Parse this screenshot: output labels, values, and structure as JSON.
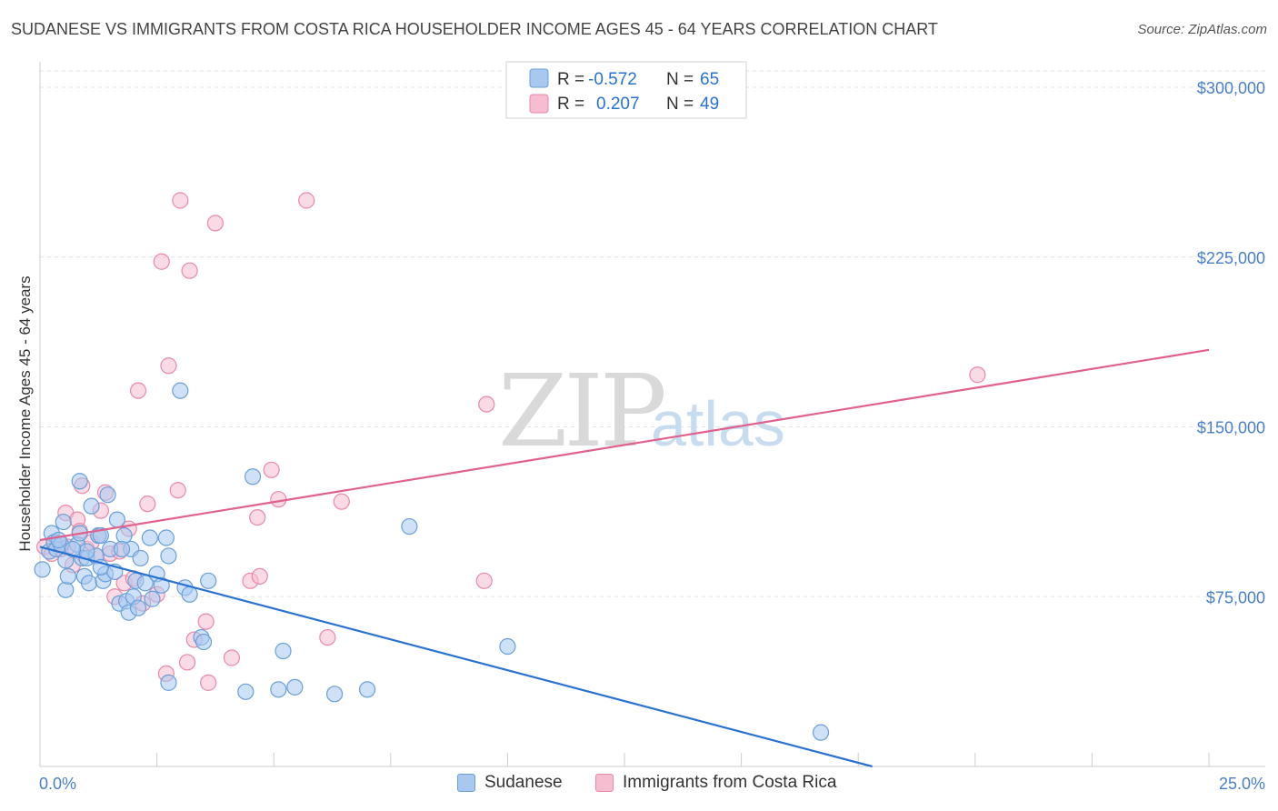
{
  "title": "SUDANESE VS IMMIGRANTS FROM COSTA RICA HOUSEHOLDER INCOME AGES 45 - 64 YEARS CORRELATION CHART",
  "source": "Source: ZipAtlas.com",
  "watermark": {
    "zip": "ZIP",
    "atlas": "atlas"
  },
  "colors": {
    "blue_fill": "#a8c8f0",
    "blue_stroke": "#6a9fd8",
    "blue_line": "#2a72d0",
    "pink_fill": "#f6bcd0",
    "pink_stroke": "#e889aa",
    "pink_line": "#e0608e",
    "axis_label": "#4a7fc8",
    "grid": "#e2e2e2"
  },
  "legend": {
    "rows": [
      {
        "r_label": "R =",
        "r_value": "-0.572",
        "n_label": "N =",
        "n_value": "65"
      },
      {
        "r_label": "R =",
        "r_value": "0.207",
        "n_label": "N =",
        "n_value": "49"
      }
    ]
  },
  "chart_data": {
    "type": "scatter",
    "xlabel": "",
    "ylabel": "Householder Income Ages 45 - 64 years",
    "xlim": [
      0,
      25
    ],
    "ylim": [
      0,
      300000
    ],
    "x_tick_labels": [
      "0.0%",
      "25.0%"
    ],
    "y_ticks": [
      75000,
      150000,
      225000,
      300000
    ],
    "y_tick_labels": [
      "$75,000",
      "$150,000",
      "$225,000",
      "$300,000"
    ],
    "grid": true,
    "series": [
      {
        "name": "Sudanese",
        "color": "#a8c8f0",
        "r": -0.572,
        "n": 65,
        "trend": {
          "x": [
            0,
            17.8
          ],
          "y": [
            97000,
            0
          ]
        },
        "points": [
          [
            0.05,
            87000
          ],
          [
            0.2,
            95000
          ],
          [
            0.25,
            103000
          ],
          [
            0.3,
            99000
          ],
          [
            0.35,
            96000
          ],
          [
            0.45,
            98000
          ],
          [
            0.5,
            108000
          ],
          [
            0.55,
            91000
          ],
          [
            0.55,
            78000
          ],
          [
            0.6,
            84000
          ],
          [
            0.8,
            98000
          ],
          [
            0.85,
            103000
          ],
          [
            0.85,
            126000
          ],
          [
            0.9,
            92000
          ],
          [
            0.95,
            84000
          ],
          [
            1.0,
            92000
          ],
          [
            1.05,
            81000
          ],
          [
            1.1,
            115000
          ],
          [
            1.2,
            93000
          ],
          [
            1.25,
            102000
          ],
          [
            1.3,
            102000
          ],
          [
            1.35,
            82000
          ],
          [
            1.4,
            85000
          ],
          [
            1.45,
            120000
          ],
          [
            1.5,
            96000
          ],
          [
            1.6,
            86000
          ],
          [
            1.65,
            109000
          ],
          [
            1.7,
            72000
          ],
          [
            1.8,
            102000
          ],
          [
            1.85,
            73000
          ],
          [
            1.9,
            68000
          ],
          [
            1.95,
            96000
          ],
          [
            2.0,
            75000
          ],
          [
            2.05,
            82000
          ],
          [
            2.1,
            70000
          ],
          [
            2.15,
            92000
          ],
          [
            2.25,
            81000
          ],
          [
            2.35,
            101000
          ],
          [
            2.5,
            85000
          ],
          [
            2.6,
            80000
          ],
          [
            2.7,
            101000
          ],
          [
            2.75,
            93000
          ],
          [
            2.75,
            37000
          ],
          [
            3.0,
            166000
          ],
          [
            3.1,
            79000
          ],
          [
            3.2,
            76000
          ],
          [
            3.45,
            57000
          ],
          [
            3.6,
            82000
          ],
          [
            4.4,
            33000
          ],
          [
            4.55,
            128000
          ],
          [
            5.2,
            51000
          ],
          [
            5.1,
            34000
          ],
          [
            5.45,
            35000
          ],
          [
            6.3,
            32000
          ],
          [
            7.0,
            34000
          ],
          [
            7.9,
            106000
          ],
          [
            10.0,
            53000
          ],
          [
            16.7,
            15000
          ],
          [
            1.0,
            95000
          ],
          [
            0.4,
            100000
          ],
          [
            1.3,
            88000
          ],
          [
            2.4,
            74000
          ],
          [
            0.7,
            96000
          ],
          [
            1.75,
            96000
          ],
          [
            3.5,
            55000
          ]
        ]
      },
      {
        "name": "Immigrants from Costa Rica",
        "color": "#f6bcd0",
        "r": 0.207,
        "n": 49,
        "trend": {
          "x": [
            0,
            25
          ],
          "y": [
            100000,
            184000
          ]
        },
        "points": [
          [
            0.1,
            97000
          ],
          [
            0.25,
            94000
          ],
          [
            0.3,
            99000
          ],
          [
            0.45,
            96000
          ],
          [
            0.55,
            112000
          ],
          [
            0.6,
            97000
          ],
          [
            0.7,
            89000
          ],
          [
            0.8,
            109000
          ],
          [
            0.85,
            104000
          ],
          [
            0.9,
            124000
          ],
          [
            1.0,
            96000
          ],
          [
            1.1,
            99000
          ],
          [
            1.2,
            93000
          ],
          [
            1.25,
            102000
          ],
          [
            1.3,
            113000
          ],
          [
            1.4,
            121000
          ],
          [
            1.5,
            94000
          ],
          [
            1.6,
            75000
          ],
          [
            1.7,
            95000
          ],
          [
            1.8,
            81000
          ],
          [
            1.9,
            105000
          ],
          [
            2.0,
            83000
          ],
          [
            2.1,
            166000
          ],
          [
            2.2,
            72000
          ],
          [
            2.3,
            116000
          ],
          [
            2.5,
            76000
          ],
          [
            2.6,
            223000
          ],
          [
            2.7,
            41000
          ],
          [
            2.75,
            177000
          ],
          [
            2.95,
            122000
          ],
          [
            3.0,
            250000
          ],
          [
            3.15,
            46000
          ],
          [
            3.2,
            219000
          ],
          [
            3.3,
            56000
          ],
          [
            3.55,
            64000
          ],
          [
            3.6,
            37000
          ],
          [
            3.75,
            240000
          ],
          [
            4.1,
            48000
          ],
          [
            4.5,
            82000
          ],
          [
            4.65,
            110000
          ],
          [
            4.7,
            84000
          ],
          [
            4.95,
            131000
          ],
          [
            5.1,
            118000
          ],
          [
            5.7,
            250000
          ],
          [
            6.15,
            57000
          ],
          [
            6.45,
            117000
          ],
          [
            9.55,
            160000
          ],
          [
            9.5,
            82000
          ],
          [
            20.05,
            173000
          ]
        ]
      }
    ]
  },
  "bottom_legend": [
    "Sudanese",
    "Immigrants from Costa Rica"
  ]
}
